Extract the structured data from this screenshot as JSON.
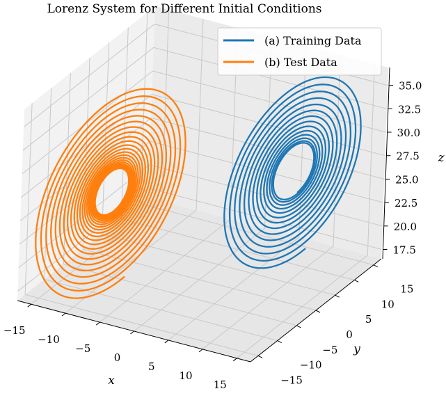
{
  "chart_data": {
    "type": "line3d",
    "title": "Lorenz System for Different Initial Conditions",
    "xlabel": "x",
    "ylabel": "y",
    "zlabel": "z",
    "xlim": [
      -17,
      17
    ],
    "ylim": [
      -17,
      17
    ],
    "zlim": [
      16.5,
      36.9
    ],
    "xticks": [
      -15,
      -10,
      -5,
      0,
      5,
      10,
      15
    ],
    "yticks": [
      -15,
      -10,
      -5,
      0,
      5,
      10,
      15
    ],
    "zticks": [
      "17.5",
      "20.0",
      "22.5",
      "25.0",
      "27.5",
      "30.0",
      "32.5",
      "35.0"
    ],
    "grid": true,
    "legend_position": "top-right",
    "series": [
      {
        "name": "(a) Training Data",
        "color": "#1f77b4",
        "attractor_center": [
          8.5,
          8.5,
          27
        ],
        "radius_range": [
          0.45,
          1.6
        ],
        "turns": 14
      },
      {
        "name": "(b) Test Data",
        "color": "#ff7f0e",
        "attractor_center": [
          -8.5,
          -8.5,
          27
        ],
        "radius_range": [
          0.38,
          1.75
        ],
        "turns": 24
      }
    ]
  }
}
